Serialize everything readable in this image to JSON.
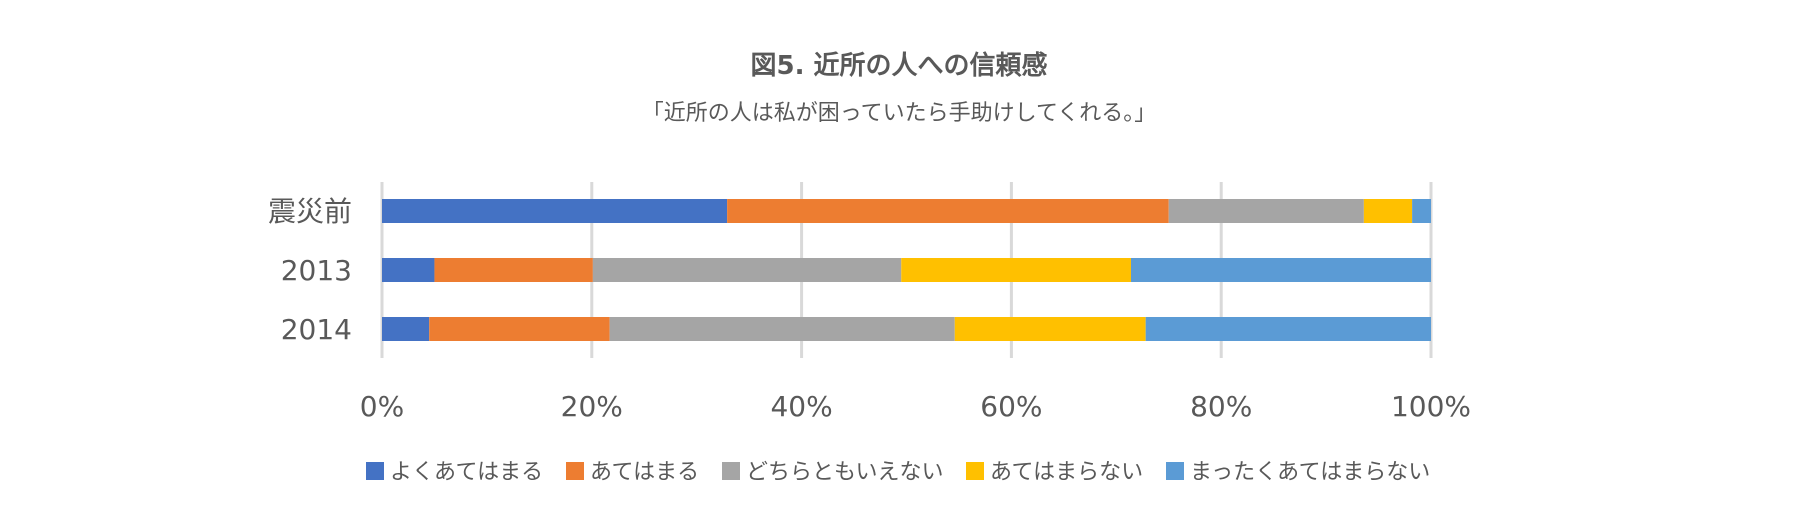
{
  "chart_data": {
    "type": "bar",
    "orientation": "horizontal",
    "stacked": "100%",
    "title": "図5. 近所の人への信頼感",
    "subtitle": "「近所の人は私が困っていたら手助けしてくれる。」",
    "categories": [
      "震災前",
      "2013",
      "2014"
    ],
    "series": [
      {
        "name": "よくあてはまる",
        "color": "#4472C4",
        "values": [
          32.9,
          5.0,
          4.5
        ]
      },
      {
        "name": "あてはまる",
        "color": "#ED7D31",
        "values": [
          42.1,
          15.1,
          17.2
        ]
      },
      {
        "name": "どちらともいえない",
        "color": "#A5A5A5",
        "values": [
          18.6,
          29.4,
          32.9
        ]
      },
      {
        "name": "あてはまらない",
        "color": "#FFC000",
        "values": [
          4.6,
          21.9,
          18.2
        ]
      },
      {
        "name": "まったくあてはまらない",
        "color": "#5B9BD5",
        "values": [
          1.8,
          28.6,
          27.2
        ]
      }
    ],
    "xlim": [
      0,
      100
    ],
    "x_ticks": [
      "0%",
      "20%",
      "40%",
      "60%",
      "80%",
      "100%"
    ],
    "grid": true,
    "legend_position": "bottom"
  }
}
